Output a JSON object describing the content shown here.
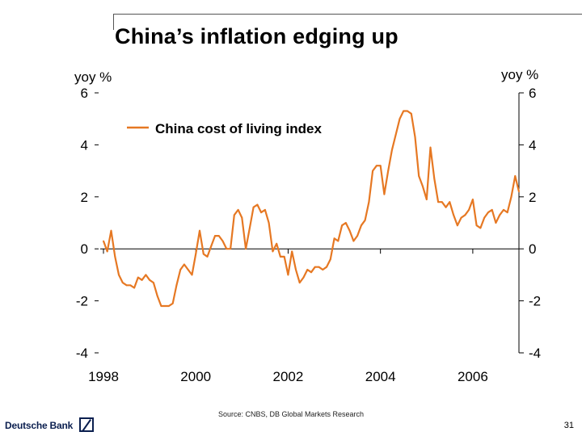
{
  "slide": {
    "title": "China’s inflation edging up",
    "source": "Source: CNBS, DB Global Markets Research",
    "page_number": "31",
    "brand": "Deutsche Bank"
  },
  "chart_data": {
    "type": "line",
    "title": "China’s inflation edging up",
    "ylabel_left": "yoy %",
    "ylabel_right": "yoy %",
    "ylim": [
      -4,
      6
    ],
    "yticks": [
      6,
      4,
      2,
      0,
      -2,
      -4
    ],
    "xlim": [
      1998.0,
      2007.0
    ],
    "xticks": [
      "1998",
      "2000",
      "2002",
      "2004",
      "2006"
    ],
    "grid": false,
    "legend_position": "top-center",
    "colors": {
      "series": "#e67823",
      "axis": "#000000"
    },
    "series": [
      {
        "name": "China cost of living index",
        "x": [
          1998.0,
          1998.083,
          1998.167,
          1998.25,
          1998.333,
          1998.417,
          1998.5,
          1998.583,
          1998.667,
          1998.75,
          1998.833,
          1998.917,
          1999.0,
          1999.083,
          1999.167,
          1999.25,
          1999.333,
          1999.417,
          1999.5,
          1999.583,
          1999.667,
          1999.75,
          1999.833,
          1999.917,
          2000.0,
          2000.083,
          2000.167,
          2000.25,
          2000.333,
          2000.417,
          2000.5,
          2000.583,
          2000.667,
          2000.75,
          2000.833,
          2000.917,
          2001.0,
          2001.083,
          2001.167,
          2001.25,
          2001.333,
          2001.417,
          2001.5,
          2001.583,
          2001.667,
          2001.75,
          2001.833,
          2001.917,
          2002.0,
          2002.083,
          2002.167,
          2002.25,
          2002.333,
          2002.417,
          2002.5,
          2002.583,
          2002.667,
          2002.75,
          2002.833,
          2002.917,
          2003.0,
          2003.083,
          2003.167,
          2003.25,
          2003.333,
          2003.417,
          2003.5,
          2003.583,
          2003.667,
          2003.75,
          2003.833,
          2003.917,
          2004.0,
          2004.083,
          2004.167,
          2004.25,
          2004.333,
          2004.417,
          2004.5,
          2004.583,
          2004.667,
          2004.75,
          2004.833,
          2004.917,
          2005.0,
          2005.083,
          2005.167,
          2005.25,
          2005.333,
          2005.417,
          2005.5,
          2005.583,
          2005.667,
          2005.75,
          2005.833,
          2005.917,
          2006.0,
          2006.083,
          2006.167,
          2006.25,
          2006.333,
          2006.417,
          2006.5,
          2006.583,
          2006.667,
          2006.75,
          2006.833,
          2006.917,
          2007.0
        ],
        "values": [
          0.3,
          -0.1,
          0.7,
          -0.3,
          -1.0,
          -1.3,
          -1.4,
          -1.4,
          -1.5,
          -1.1,
          -1.2,
          -1.0,
          -1.2,
          -1.3,
          -1.8,
          -2.2,
          -2.2,
          -2.2,
          -2.1,
          -1.4,
          -0.8,
          -0.6,
          -0.8,
          -1.0,
          -0.2,
          0.7,
          -0.2,
          -0.3,
          0.1,
          0.5,
          0.5,
          0.3,
          0.0,
          0.0,
          1.3,
          1.5,
          1.2,
          0.0,
          0.8,
          1.6,
          1.7,
          1.4,
          1.5,
          1.0,
          -0.1,
          0.2,
          -0.3,
          -0.3,
          -1.0,
          -0.1,
          -0.8,
          -1.3,
          -1.1,
          -0.8,
          -0.9,
          -0.7,
          -0.7,
          -0.8,
          -0.7,
          -0.4,
          0.4,
          0.3,
          0.9,
          1.0,
          0.7,
          0.3,
          0.5,
          0.9,
          1.1,
          1.8,
          3.0,
          3.2,
          3.2,
          2.1,
          3.0,
          3.8,
          4.4,
          5.0,
          5.3,
          5.3,
          5.2,
          4.3,
          2.8,
          2.4,
          1.9,
          3.9,
          2.7,
          1.8,
          1.8,
          1.6,
          1.8,
          1.3,
          0.9,
          1.2,
          1.3,
          1.5,
          1.9,
          0.9,
          0.8,
          1.2,
          1.4,
          1.5,
          1.0,
          1.3,
          1.5,
          1.4,
          2.0,
          2.8,
          2.2
        ]
      }
    ]
  }
}
